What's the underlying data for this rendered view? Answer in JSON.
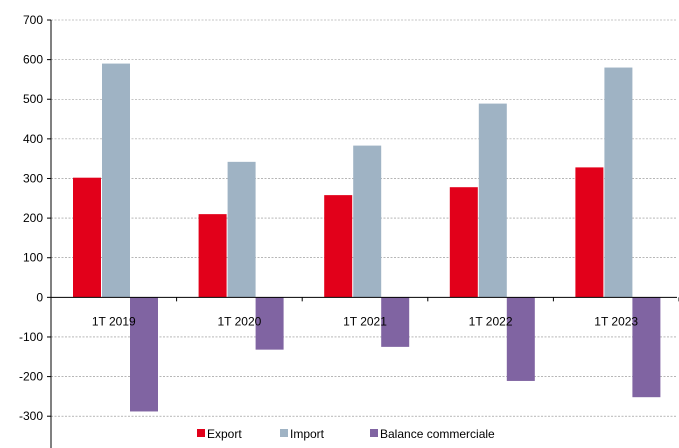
{
  "chart_data": {
    "type": "bar",
    "title": "",
    "xlabel": "",
    "ylabel": "",
    "categories": [
      "1T 2019",
      "1T 2020",
      "1T 2021",
      "1T 2022",
      "1T 2023"
    ],
    "series": [
      {
        "name": "Export",
        "color": "#e2001a",
        "values": [
          302,
          210,
          258,
          278,
          328
        ]
      },
      {
        "name": "Import",
        "color": "#9fb3c4",
        "values": [
          590,
          342,
          383,
          489,
          580
        ]
      },
      {
        "name": "Balance commerciale",
        "color": "#8064a2",
        "values": [
          -288,
          -132,
          -125,
          -211,
          -252
        ]
      }
    ],
    "ylim": [
      -350,
      700
    ],
    "yticks": [
      700,
      600,
      500,
      400,
      300,
      200,
      100,
      0,
      -100,
      -200,
      -300
    ],
    "grid": true,
    "legend_position": "bottom"
  }
}
